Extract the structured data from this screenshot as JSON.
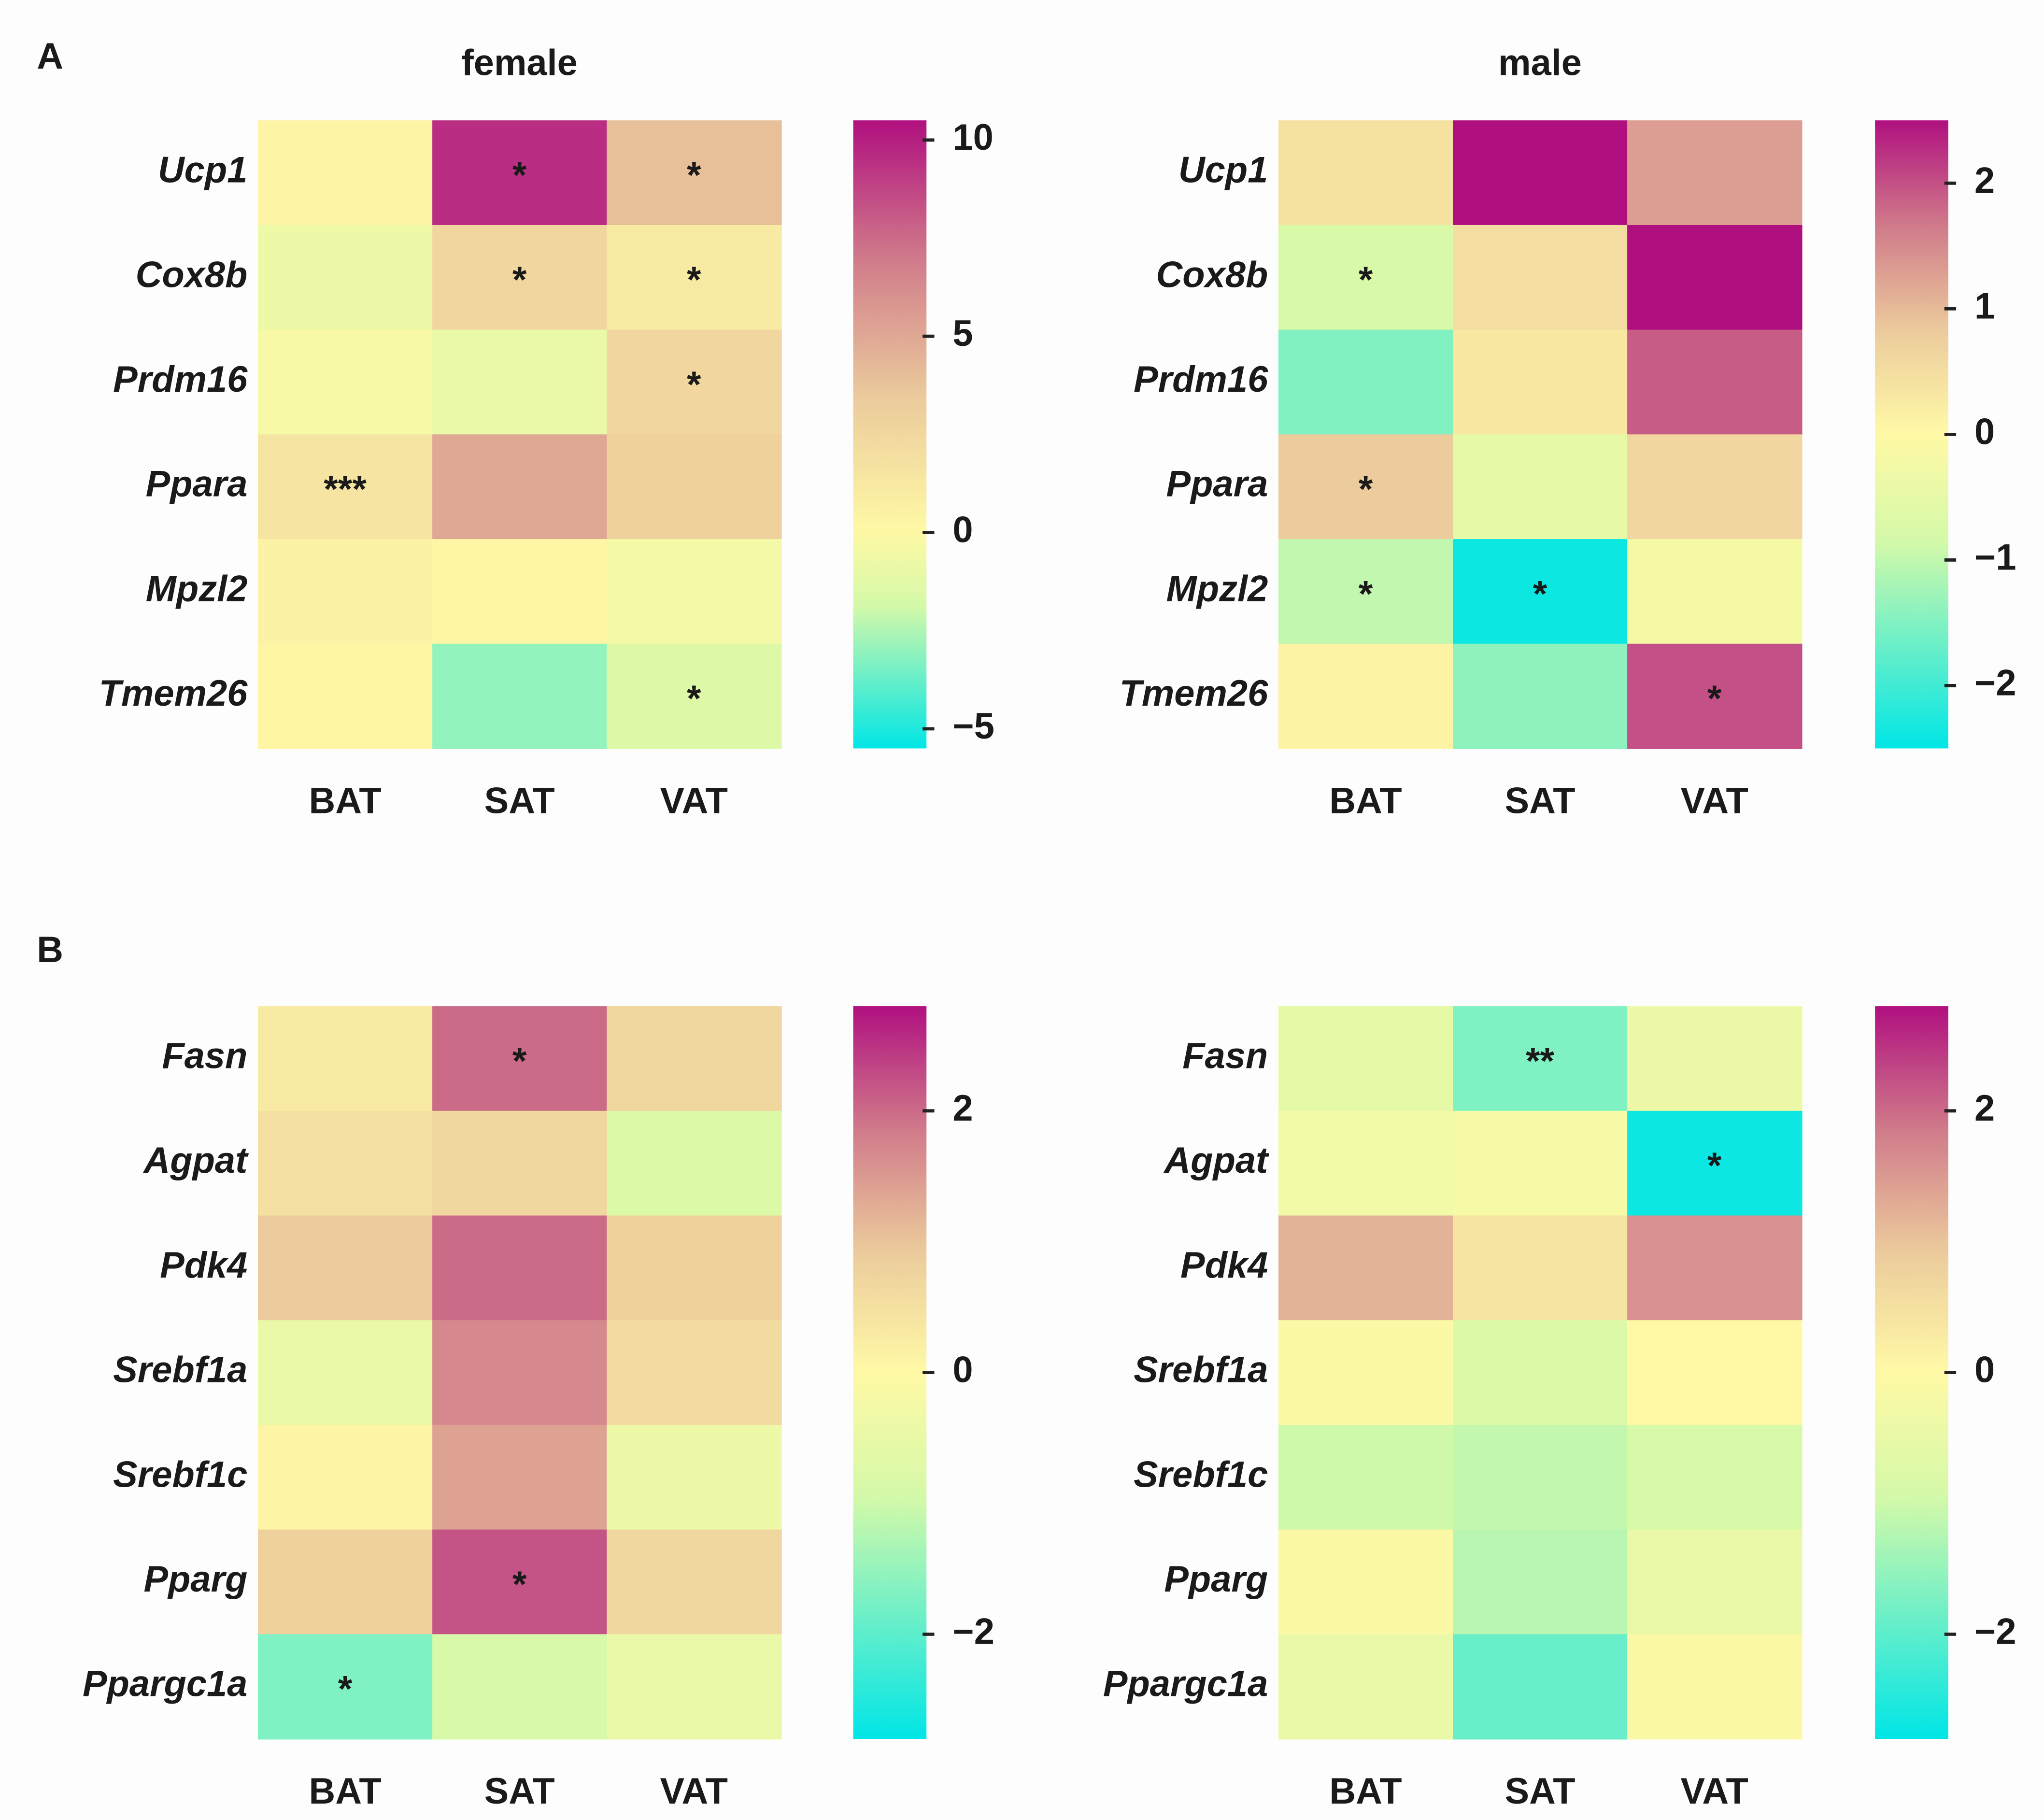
{
  "chart_data": [
    {
      "type": "heatmap",
      "panel": "A",
      "title": "female",
      "x": [
        "BAT",
        "SAT",
        "VAT"
      ],
      "y": [
        "Ucp1",
        "Cox8b",
        "Prdm16",
        "Ppara",
        "Mpzl2",
        "Tmem26"
      ],
      "values": [
        [
          0.3,
          9.5,
          4
        ],
        [
          -0.8,
          2.5,
          1.2
        ],
        [
          -0.3,
          -1,
          2.5
        ],
        [
          1.5,
          5,
          3
        ],
        [
          0.5,
          0.2,
          -0.5
        ],
        [
          0.2,
          -3,
          -1.5
        ]
      ],
      "annotations": [
        [
          null,
          "*",
          "*"
        ],
        [
          null,
          "*",
          "*"
        ],
        [
          null,
          null,
          "*"
        ],
        [
          "***",
          null,
          null
        ],
        [
          null,
          null,
          null
        ],
        [
          null,
          null,
          "*"
        ]
      ],
      "clim": [
        -5.5,
        10.5
      ],
      "center": 0,
      "cticks": [
        {
          "value": -5,
          "label": "−5"
        },
        0,
        5,
        10
      ],
      "colormap": [
        "#00e6e6",
        "#6cefc8",
        "#d6f9a8",
        "#fff9a6",
        "#ebca9c",
        "#d07a8a",
        "#b0107f"
      ]
    },
    {
      "type": "heatmap",
      "title": "male",
      "x": [
        "BAT",
        "SAT",
        "VAT"
      ],
      "y": [
        "Ucp1",
        "Cox8b",
        "Prdm16",
        "Ppara",
        "Mpzl2",
        "Tmem26"
      ],
      "values": [
        [
          0.4,
          2.5,
          1.3
        ],
        [
          -0.8,
          0.5,
          2.5
        ],
        [
          -1.5,
          0.3,
          1.9
        ],
        [
          0.8,
          -0.5,
          0.6
        ],
        [
          -1.0,
          -2.4,
          -0.2
        ],
        [
          0.1,
          -1.4,
          2.0
        ]
      ],
      "annotations": [
        [
          null,
          null,
          null
        ],
        [
          "*",
          null,
          null
        ],
        [
          null,
          null,
          null
        ],
        [
          "*",
          null,
          null
        ],
        [
          "*",
          "*",
          null
        ],
        [
          null,
          null,
          "*"
        ]
      ],
      "clim": [
        -2.5,
        2.5
      ],
      "center": 0,
      "cticks": [
        {
          "value": -2,
          "label": "−2"
        },
        {
          "value": -1,
          "label": "−1"
        },
        0,
        1,
        2
      ],
      "colormap": [
        "#00e6e6",
        "#6cefc8",
        "#d6f9a8",
        "#fff9a6",
        "#ebca9c",
        "#d07a8a",
        "#b0107f"
      ]
    },
    {
      "type": "heatmap",
      "panel": "B",
      "x": [
        "BAT",
        "SAT",
        "VAT"
      ],
      "y": [
        "Fasn",
        "Agpat",
        "Pdk4",
        "Srebf1a",
        "Srebf1c",
        "Pparg",
        "Ppargc1a"
      ],
      "values": [
        [
          0.3,
          2.0,
          0.7
        ],
        [
          0.5,
          0.7,
          -0.8
        ],
        [
          0.9,
          2.0,
          0.8
        ],
        [
          -0.5,
          1.7,
          0.6
        ],
        [
          0.1,
          1.4,
          -0.4
        ],
        [
          0.8,
          2.2,
          0.7
        ],
        [
          -1.7,
          -0.9,
          -0.5
        ]
      ],
      "annotations": [
        [
          null,
          "*",
          null
        ],
        [
          null,
          null,
          null
        ],
        [
          null,
          null,
          null
        ],
        [
          null,
          null,
          null
        ],
        [
          null,
          null,
          null
        ],
        [
          null,
          "*",
          null
        ],
        [
          "*",
          null,
          null
        ]
      ],
      "clim": [
        -2.8,
        2.8
      ],
      "center": 0,
      "cticks": [
        {
          "value": -2,
          "label": "−2"
        },
        0,
        2
      ],
      "colormap": [
        "#00e6e6",
        "#6cefc8",
        "#d6f9a8",
        "#fff9a6",
        "#ebca9c",
        "#d07a8a",
        "#b0107f"
      ]
    },
    {
      "type": "heatmap",
      "x": [
        "BAT",
        "SAT",
        "VAT"
      ],
      "y": [
        "Fasn",
        "Agpat",
        "Pdk4",
        "Srebf1a",
        "Srebf1c",
        "Pparg",
        "Ppargc1a"
      ],
      "values": [
        [
          -0.6,
          -1.7,
          -0.4
        ],
        [
          -0.3,
          -0.2,
          -2.7
        ],
        [
          1.2,
          0.4,
          1.6
        ],
        [
          -0.1,
          -0.8,
          0.0
        ],
        [
          -1.0,
          -1.1,
          -0.9
        ],
        [
          -0.1,
          -1.2,
          -0.5
        ],
        [
          -0.5,
          -1.9,
          -0.1
        ]
      ],
      "annotations": [
        [
          null,
          "**",
          null
        ],
        [
          null,
          null,
          "*"
        ],
        [
          null,
          null,
          null
        ],
        [
          null,
          null,
          null
        ],
        [
          null,
          null,
          null
        ],
        [
          null,
          null,
          null
        ],
        [
          null,
          null,
          null
        ]
      ],
      "clim": [
        -2.8,
        2.8
      ],
      "center": 0,
      "cticks": [
        {
          "value": -2,
          "label": "−2"
        },
        0,
        2
      ],
      "colormap": [
        "#00e6e6",
        "#6cefc8",
        "#d6f9a8",
        "#fff9a6",
        "#ebca9c",
        "#d07a8a",
        "#b0107f"
      ]
    }
  ]
}
